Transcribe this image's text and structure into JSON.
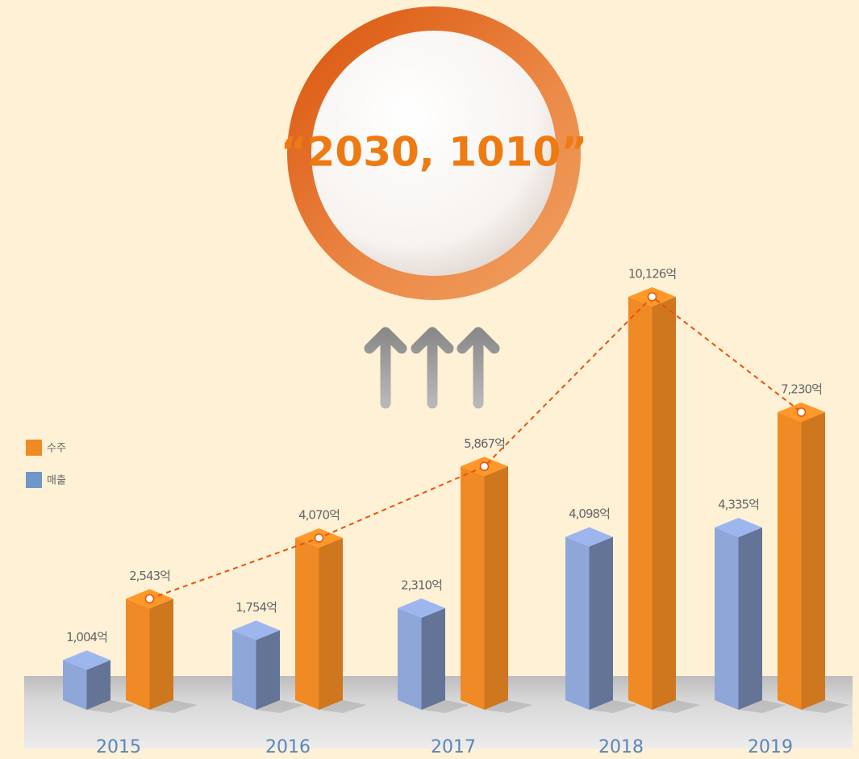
{
  "chart_data": {
    "type": "bar3d",
    "title": "“2030, 1010”",
    "categories": [
      "2015",
      "2016",
      "2017",
      "2018",
      "2019"
    ],
    "series": [
      {
        "name": "수주",
        "color": "#f08a24",
        "values": [
          2543,
          4070,
          5867,
          10126,
          7230
        ],
        "value_labels": [
          "2,543억",
          "4,070억",
          "5,867억",
          "10,126억",
          "7,230억"
        ]
      },
      {
        "name": "매출",
        "color": "#8fa6d8",
        "values": [
          1004,
          1754,
          2310,
          4098,
          4335
        ],
        "value_labels": [
          "1,004억",
          "1,754억",
          "2,310억",
          "4,098억",
          "4,335억"
        ]
      }
    ]
  }
}
